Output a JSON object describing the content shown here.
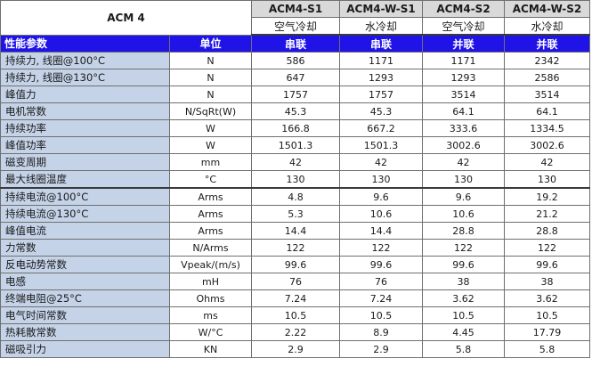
{
  "table": {
    "title": "ACM 4",
    "models": [
      "ACM4-S1",
      "ACM4-W-S1",
      "ACM4-S2",
      "ACM4-W-S2"
    ],
    "cooling": [
      "空气冷却",
      "水冷却",
      "空气冷却",
      "水冷却"
    ],
    "header": {
      "param": "性能参数",
      "unit": "单位",
      "connections": [
        "串联",
        "串联",
        "并联",
        "并联"
      ]
    },
    "rows": [
      {
        "param": "持续力, 线圈@100°C",
        "unit": "N",
        "values": [
          "586",
          "1171",
          "1171",
          "2342"
        ]
      },
      {
        "param": "持续力, 线圈@130°C",
        "unit": "N",
        "values": [
          "647",
          "1293",
          "1293",
          "2586"
        ]
      },
      {
        "param": "峰值力",
        "unit": "N",
        "values": [
          "1757",
          "1757",
          "3514",
          "3514"
        ]
      },
      {
        "param": "电机常数",
        "unit": "N/SqRt(W)",
        "values": [
          "45.3",
          "45.3",
          "64.1",
          "64.1"
        ]
      },
      {
        "param": "持续功率",
        "unit": "W",
        "values": [
          "166.8",
          "667.2",
          "333.6",
          "1334.5"
        ]
      },
      {
        "param": "峰值功率",
        "unit": "W",
        "values": [
          "1501.3",
          "1501.3",
          "3002.6",
          "3002.6"
        ]
      },
      {
        "param": "磁变周期",
        "unit": "mm",
        "values": [
          "42",
          "42",
          "42",
          "42"
        ]
      },
      {
        "param": "最大线圈温度",
        "unit": "°C",
        "values": [
          "130",
          "130",
          "130",
          "130"
        ]
      },
      {
        "param": "持续电流@100°C",
        "unit": "Arms",
        "values": [
          "4.8",
          "9.6",
          "9.6",
          "19.2"
        ]
      },
      {
        "param": "持续电流@130°C",
        "unit": "Arms",
        "values": [
          "5.3",
          "10.6",
          "10.6",
          "21.2"
        ]
      },
      {
        "param": "峰值电流",
        "unit": "Arms",
        "values": [
          "14.4",
          "14.4",
          "28.8",
          "28.8"
        ]
      },
      {
        "param": "力常数",
        "unit": "N/Arms",
        "values": [
          "122",
          "122",
          "122",
          "122"
        ]
      },
      {
        "param": "反电动势常数",
        "unit": "Vpeak/(m/s)",
        "values": [
          "99.6",
          "99.6",
          "99.6",
          "99.6"
        ]
      },
      {
        "param": "电感",
        "unit": "mH",
        "values": [
          "76",
          "76",
          "38",
          "38"
        ]
      },
      {
        "param": "终端电阻@25°C",
        "unit": "Ohms",
        "values": [
          "7.24",
          "7.24",
          "3.62",
          "3.62"
        ]
      },
      {
        "param": "电气时间常数",
        "unit": "ms",
        "values": [
          "10.5",
          "10.5",
          "10.5",
          "10.5"
        ]
      },
      {
        "param": "热耗散常数",
        "unit": "W/°C",
        "values": [
          "2.22",
          "8.9",
          "4.45",
          "17.79"
        ]
      },
      {
        "param": "磁吸引力",
        "unit": "KN",
        "values": [
          "2.9",
          "2.9",
          "5.8",
          "5.8"
        ]
      }
    ]
  },
  "colors": {
    "header_bg": "#1f13e8",
    "param_bg": "#c5d3e8",
    "model_bg": "#d9d9d9"
  }
}
